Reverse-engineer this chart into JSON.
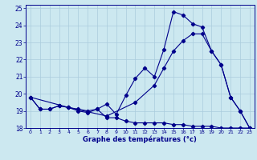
{
  "xlabel": "Graphe des températures (°c)",
  "bg_color": "#cce8f0",
  "line_color": "#00008b",
  "grid_color": "#aaccdd",
  "xlim": [
    -0.5,
    23.5
  ],
  "ylim": [
    18.0,
    25.2
  ],
  "yticks": [
    18,
    19,
    20,
    21,
    22,
    23,
    24,
    25
  ],
  "xticks": [
    0,
    1,
    2,
    3,
    4,
    5,
    6,
    7,
    8,
    9,
    10,
    11,
    12,
    13,
    14,
    15,
    16,
    17,
    18,
    19,
    20,
    21,
    22,
    23
  ],
  "line1_x": [
    0,
    1,
    2,
    3,
    4,
    5,
    6,
    7,
    8,
    9,
    10,
    11,
    12,
    13,
    14,
    15,
    16,
    17,
    18,
    19,
    20,
    21,
    22,
    23
  ],
  "line1_y": [
    19.8,
    19.1,
    19.1,
    19.3,
    19.2,
    19.1,
    19.0,
    19.1,
    18.6,
    18.6,
    18.4,
    18.3,
    18.3,
    18.3,
    18.3,
    18.2,
    18.2,
    18.1,
    18.1,
    18.1,
    18.0,
    18.0,
    18.0,
    18.0
  ],
  "line2_x": [
    0,
    1,
    2,
    3,
    4,
    5,
    6,
    7,
    8,
    9,
    10,
    11,
    12,
    13,
    14,
    15,
    16,
    17,
    18,
    19,
    20,
    21,
    22,
    23
  ],
  "line2_y": [
    19.8,
    19.1,
    19.1,
    19.3,
    19.2,
    19.0,
    18.9,
    19.1,
    19.4,
    18.8,
    19.9,
    20.9,
    21.5,
    21.0,
    22.6,
    24.8,
    24.6,
    24.1,
    23.9,
    22.5,
    21.7,
    19.8,
    19.0,
    18.0
  ],
  "line3_x": [
    0,
    4,
    8,
    11,
    13,
    14,
    15,
    16,
    17,
    18,
    19,
    20,
    21,
    22,
    23
  ],
  "line3_y": [
    19.8,
    19.2,
    18.7,
    19.5,
    20.5,
    21.5,
    22.5,
    23.1,
    23.5,
    23.5,
    22.5,
    21.7,
    19.8,
    19.0,
    18.0
  ]
}
